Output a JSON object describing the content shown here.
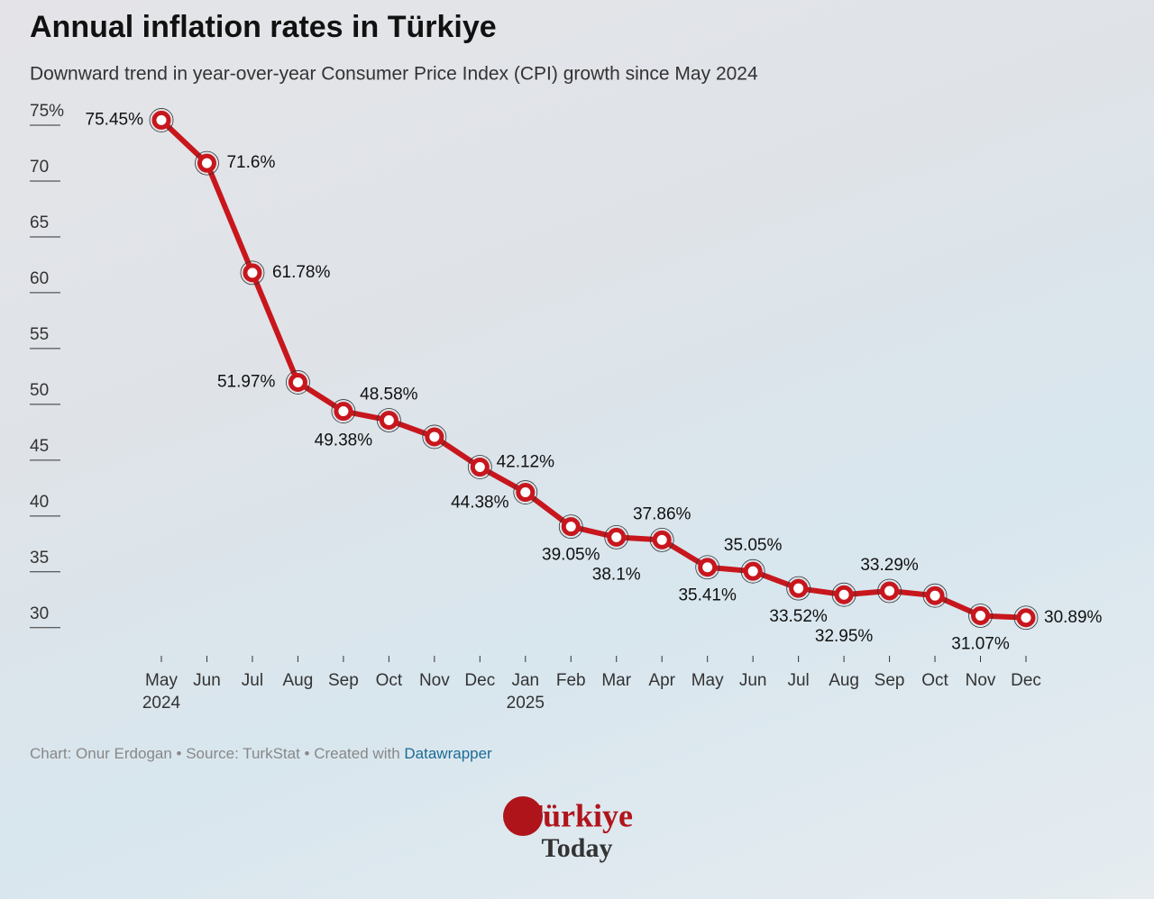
{
  "chart_data": {
    "type": "line",
    "title": "Annual inflation rates in Türkiye",
    "subtitle": "Downward trend in year-over-year Consumer Price Index (CPI) growth since May 2024",
    "categories": [
      "May",
      "Jun",
      "Jul",
      "Aug",
      "Sep",
      "Oct",
      "Nov",
      "Dec",
      "Jan",
      "Feb",
      "Mar",
      "Apr",
      "May",
      "Jun",
      "Jul",
      "Aug",
      "Sep",
      "Oct",
      "Nov",
      "Dec"
    ],
    "years": [
      "2024",
      null,
      null,
      null,
      null,
      null,
      null,
      null,
      "2025",
      null,
      null,
      null,
      null,
      null,
      null,
      null,
      null,
      null,
      null,
      null
    ],
    "series": [
      {
        "name": "Annual inflation",
        "color": "#c8161d",
        "values": [
          75.45,
          71.6,
          61.78,
          51.97,
          49.38,
          48.58,
          47.09,
          44.38,
          42.12,
          39.05,
          38.1,
          37.86,
          35.41,
          35.05,
          33.52,
          32.95,
          33.29,
          32.87,
          31.07,
          30.89
        ],
        "value_labels": [
          "75.45%",
          "71.6%",
          "61.78%",
          "51.97%",
          "49.38%",
          "48.58%",
          null,
          "44.38%",
          "42.12%",
          "39.05%",
          "38.1%",
          "37.86%",
          "35.41%",
          "35.05%",
          "33.52%",
          "32.95%",
          "33.29%",
          null,
          "31.07%",
          "30.89%"
        ]
      }
    ],
    "ylim": [
      27.4,
      76
    ],
    "yticks": [
      30,
      35,
      40,
      45,
      50,
      55,
      60,
      65,
      70,
      {
        "value": 75,
        "label": "75%"
      }
    ],
    "source_prefix": "Chart: Onur Erdogan • Source: TurkStat • Created with",
    "source_link": "Datawrapper",
    "logo_top": "Türkiye",
    "logo_bottom": "Today"
  }
}
